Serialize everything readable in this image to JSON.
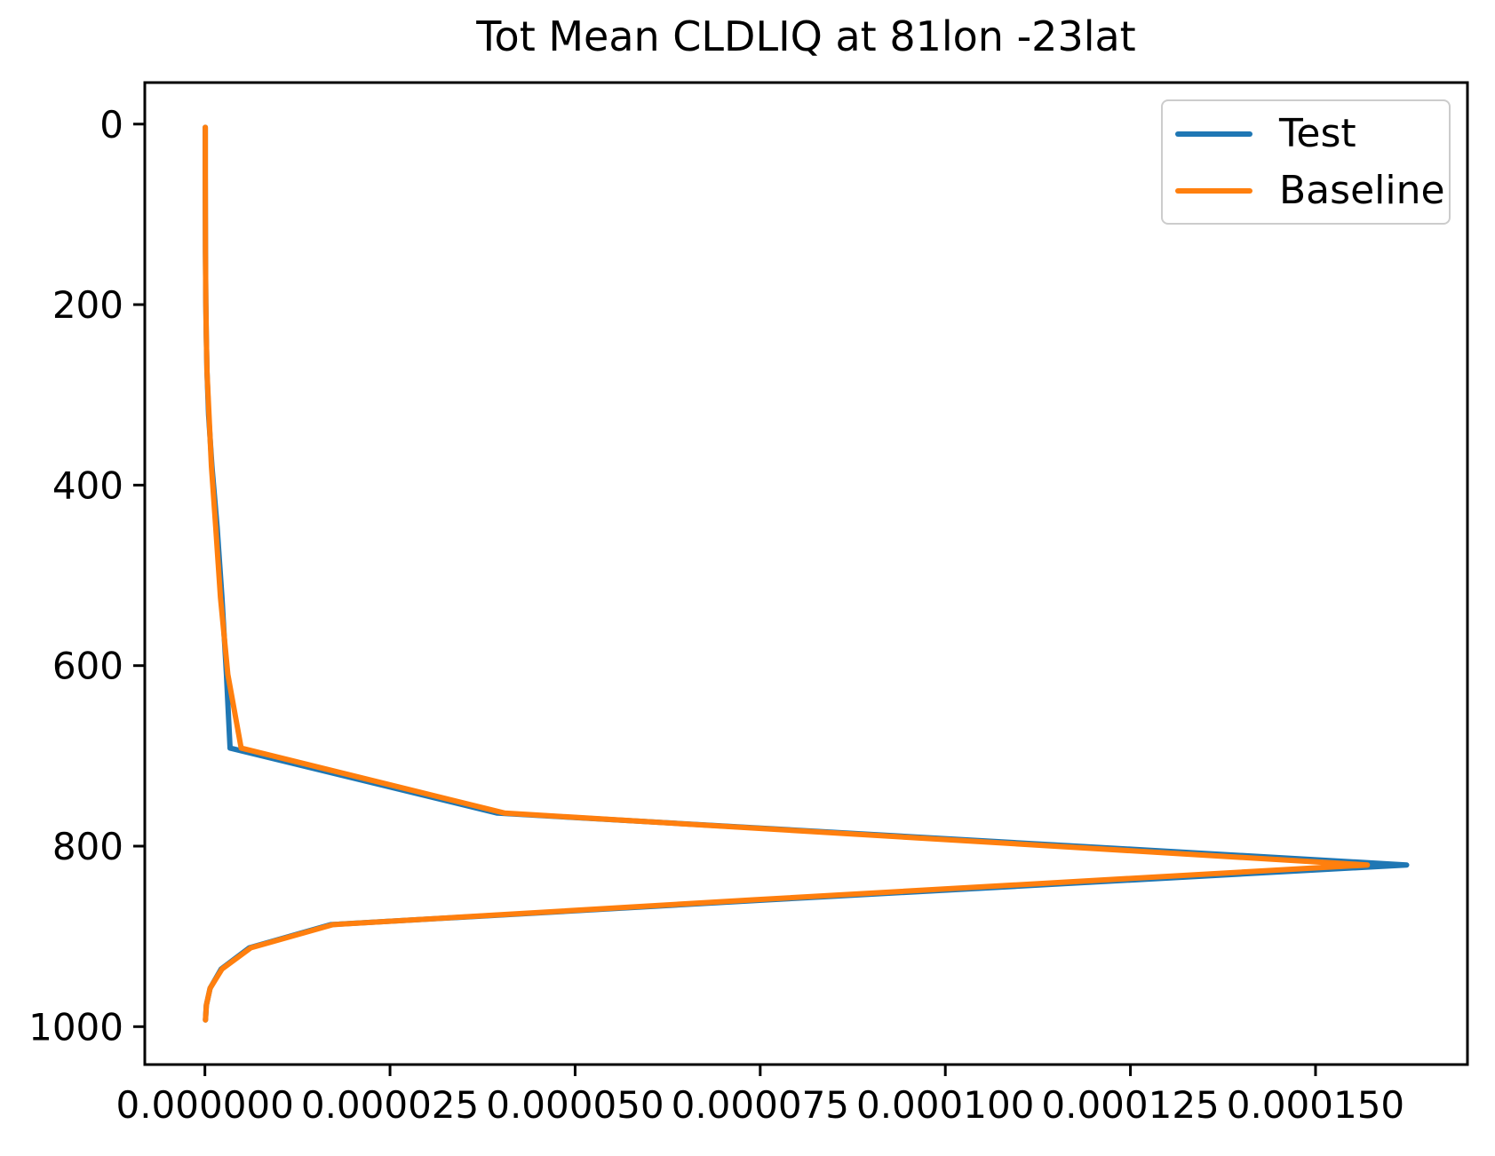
{
  "title": "Tot Mean CLDLIQ at 81lon -23lat",
  "colors": {
    "test_line": "#1f77b4",
    "baseline_line": "#ff7f0e",
    "axis": "#000000",
    "legend_border": "#cccccc",
    "background": "#ffffff"
  },
  "legend": {
    "entries": [
      {
        "label": "Test",
        "color": "#1f77b4"
      },
      {
        "label": "Baseline",
        "color": "#ff7f0e"
      }
    ]
  },
  "chart_data": {
    "type": "line",
    "title": "Tot Mean CLDLIQ at 81lon -23lat",
    "xlabel": "",
    "ylabel": "",
    "grid": false,
    "legend_position": "upper right",
    "y_inverted": true,
    "xlim": [
      -8.12e-06,
      0.00017052
    ],
    "ylim": [
      1042,
      -46
    ],
    "x_ticks": {
      "values": [
        0.0,
        2.5e-05,
        5e-05,
        7.5e-05,
        0.0001,
        0.000125,
        0.00015
      ],
      "labels": [
        "0.000000",
        "0.000025",
        "0.000050",
        "0.000075",
        "0.000100",
        "0.000125",
        "0.000150"
      ]
    },
    "y_ticks": {
      "values": [
        0,
        200,
        400,
        600,
        800,
        1000
      ],
      "labels": [
        "0",
        "200",
        "400",
        "600",
        "800",
        "1000"
      ]
    },
    "y_axis_meaning": "pressure (hPa), inverted",
    "pressure_hPa": [
      3.6,
      54.6,
      103.3,
      142.9,
      197.9,
      232.8,
      273.9,
      322.2,
      379.1,
      446.0,
      524.7,
      609.8,
      691.4,
      763.4,
      820.9,
      859.5,
      887.0,
      912.6,
      936.2,
      957.5,
      976.3,
      992.6
    ],
    "series": [
      {
        "name": "Test",
        "color": "#1f77b4",
        "values": [
          5e-08,
          5e-08,
          6e-08,
          8e-08,
          1.2e-07,
          1.8e-07,
          2.8e-07,
          5e-07,
          9.5e-07,
          1.65e-06,
          2.3e-06,
          2.9e-06,
          3.4e-06,
          3.95e-05,
          0.0001623,
          7.6e-05,
          1.7e-05,
          6e-06,
          2.2e-06,
          7e-07,
          2e-07,
          8e-08
        ]
      },
      {
        "name": "Baseline",
        "color": "#ff7f0e",
        "values": [
          5e-08,
          5e-08,
          6e-08,
          8e-08,
          1.2e-07,
          1.8e-07,
          2.8e-07,
          5.5e-07,
          8.8e-07,
          1.45e-06,
          2.1e-06,
          3.1e-06,
          4.9e-06,
          4.05e-05,
          0.000157,
          7.4e-05,
          1.73e-05,
          6.2e-06,
          2.3e-06,
          7e-07,
          2e-07,
          8e-08
        ]
      }
    ]
  }
}
